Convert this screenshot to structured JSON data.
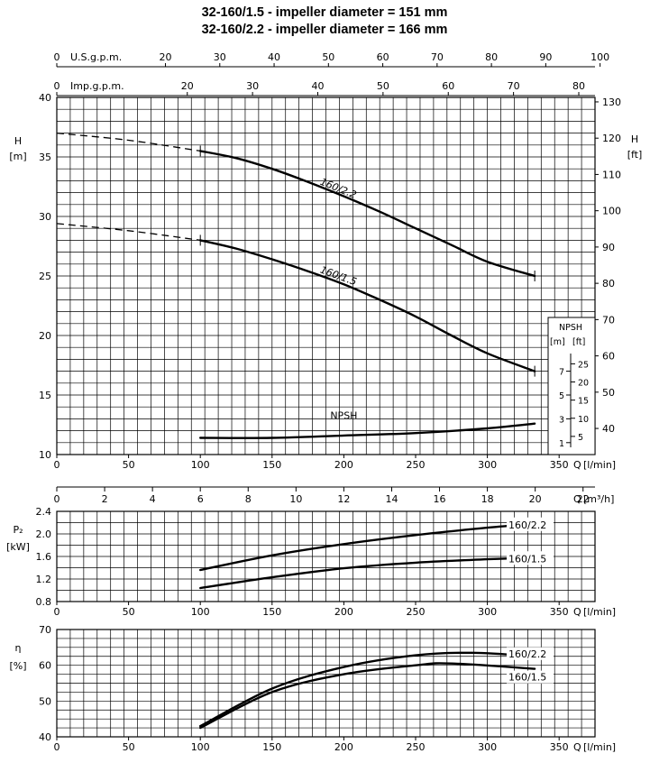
{
  "title": {
    "line1": "32-160/1.5 - impeller diameter = 151 mm",
    "line2": "32-160/2.2 - impeller diameter = 166 mm"
  },
  "chart_data": [
    {
      "type": "line",
      "panel": "head",
      "x_label": "Q",
      "x_unit": "[l/min]",
      "xlim": [
        0,
        375
      ],
      "x_ticks": [
        0,
        50,
        100,
        150,
        200,
        250,
        300,
        350
      ],
      "y_label": "H",
      "y_unit": "[m]",
      "ylim": [
        10,
        40
      ],
      "y_ticks": [
        10,
        15,
        20,
        25,
        30,
        35,
        40
      ],
      "y2_label": "H",
      "y2_unit": "[ft]",
      "y2_ticks": [
        40,
        50,
        60,
        70,
        80,
        90,
        100,
        110,
        120,
        130
      ],
      "top_axes": [
        {
          "label": "U.S.g.p.m.",
          "ticks": [
            0,
            20,
            30,
            40,
            50,
            60,
            70,
            80,
            90,
            100
          ]
        },
        {
          "label": "Imp.g.p.m.",
          "ticks": [
            0,
            20,
            30,
            40,
            50,
            60,
            70,
            80
          ]
        }
      ],
      "grid": true,
      "series": [
        {
          "name": "160/2.2",
          "x": [
            100,
            125,
            150,
            175,
            200,
            225,
            250,
            275,
            300,
            333
          ],
          "y": [
            35.5,
            34.9,
            34.0,
            32.9,
            31.7,
            30.4,
            29.0,
            27.6,
            26.2,
            25.0
          ]
        },
        {
          "name": "160/1.5",
          "x": [
            100,
            125,
            150,
            175,
            200,
            225,
            250,
            275,
            300,
            333
          ],
          "y": [
            28.0,
            27.3,
            26.4,
            25.4,
            24.3,
            23.0,
            21.6,
            20.0,
            18.5,
            17.0
          ]
        },
        {
          "name": "NPSH",
          "x": [
            100,
            150,
            200,
            250,
            300,
            333
          ],
          "y": [
            11.4,
            11.4,
            11.6,
            11.8,
            12.2,
            12.6
          ]
        }
      ],
      "shutoff": [
        {
          "series": "160/2.2",
          "x": [
            0,
            50,
            100
          ],
          "y": [
            37.0,
            36.4,
            35.5
          ]
        },
        {
          "series": "160/1.5",
          "x": [
            0,
            50,
            100
          ],
          "y": [
            29.4,
            28.8,
            28.0
          ]
        }
      ],
      "npsh_scale": {
        "label": "NPSH",
        "unit_m": "[m]",
        "unit_ft": "[ft]",
        "m_ticks": [
          1,
          3,
          5,
          7
        ],
        "ft_ticks": [
          5,
          10,
          15,
          20,
          25
        ]
      }
    },
    {
      "type": "axis",
      "panel": "flow-m3h",
      "x_label": "Q",
      "x_unit": "[m³/h]",
      "x_ticks": [
        0,
        2,
        4,
        6,
        8,
        10,
        12,
        14,
        16,
        18,
        20,
        22
      ]
    },
    {
      "type": "line",
      "panel": "power",
      "x_label": "Q",
      "x_unit": "[l/min]",
      "xlim": [
        0,
        375
      ],
      "x_ticks": [
        0,
        50,
        100,
        150,
        200,
        250,
        300,
        350
      ],
      "y_label": "P₂",
      "y_unit": "[kW]",
      "ylim": [
        0.8,
        2.4
      ],
      "y_ticks": [
        0.8,
        1.2,
        1.6,
        2.0,
        2.4
      ],
      "grid": true,
      "series": [
        {
          "name": "160/2.2",
          "x": [
            100,
            150,
            200,
            250,
            300,
            333
          ],
          "y": [
            1.36,
            1.62,
            1.82,
            1.98,
            2.11,
            2.18
          ]
        },
        {
          "name": "160/1.5",
          "x": [
            100,
            150,
            200,
            250,
            300,
            333
          ],
          "y": [
            1.04,
            1.23,
            1.39,
            1.49,
            1.55,
            1.58
          ]
        }
      ]
    },
    {
      "type": "line",
      "panel": "efficiency",
      "x_label": "Q",
      "x_unit": "[l/min]",
      "xlim": [
        0,
        375
      ],
      "x_ticks": [
        0,
        50,
        100,
        150,
        200,
        250,
        300,
        350
      ],
      "y_label": "η",
      "y_unit": "[%]",
      "ylim": [
        40,
        70
      ],
      "y_ticks": [
        40,
        50,
        60,
        70
      ],
      "grid": true,
      "series": [
        {
          "name": "160/2.2",
          "x": [
            100,
            150,
            200,
            250,
            290,
            333
          ],
          "y": [
            43.0,
            53.5,
            59.5,
            62.8,
            63.5,
            62.5
          ]
        },
        {
          "name": "160/1.5",
          "x": [
            100,
            150,
            200,
            250,
            275,
            333
          ],
          "y": [
            42.5,
            52.5,
            57.5,
            60.0,
            60.5,
            59.0
          ]
        }
      ]
    }
  ]
}
